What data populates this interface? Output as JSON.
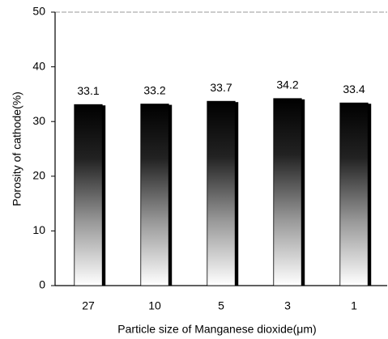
{
  "chart_data": {
    "type": "bar",
    "x_label": "Particle size of Manganese dioxide(μm)",
    "y_label": "Porosity of cathode(%)",
    "categories": [
      "27",
      "10",
      "5",
      "3",
      "1"
    ],
    "values": [
      33.1,
      33.2,
      33.7,
      34.2,
      33.4
    ],
    "color": "#000000",
    "ylim": [
      0,
      50
    ],
    "yticks": [
      0,
      10,
      20,
      30,
      40,
      50
    ],
    "grid": false
  }
}
